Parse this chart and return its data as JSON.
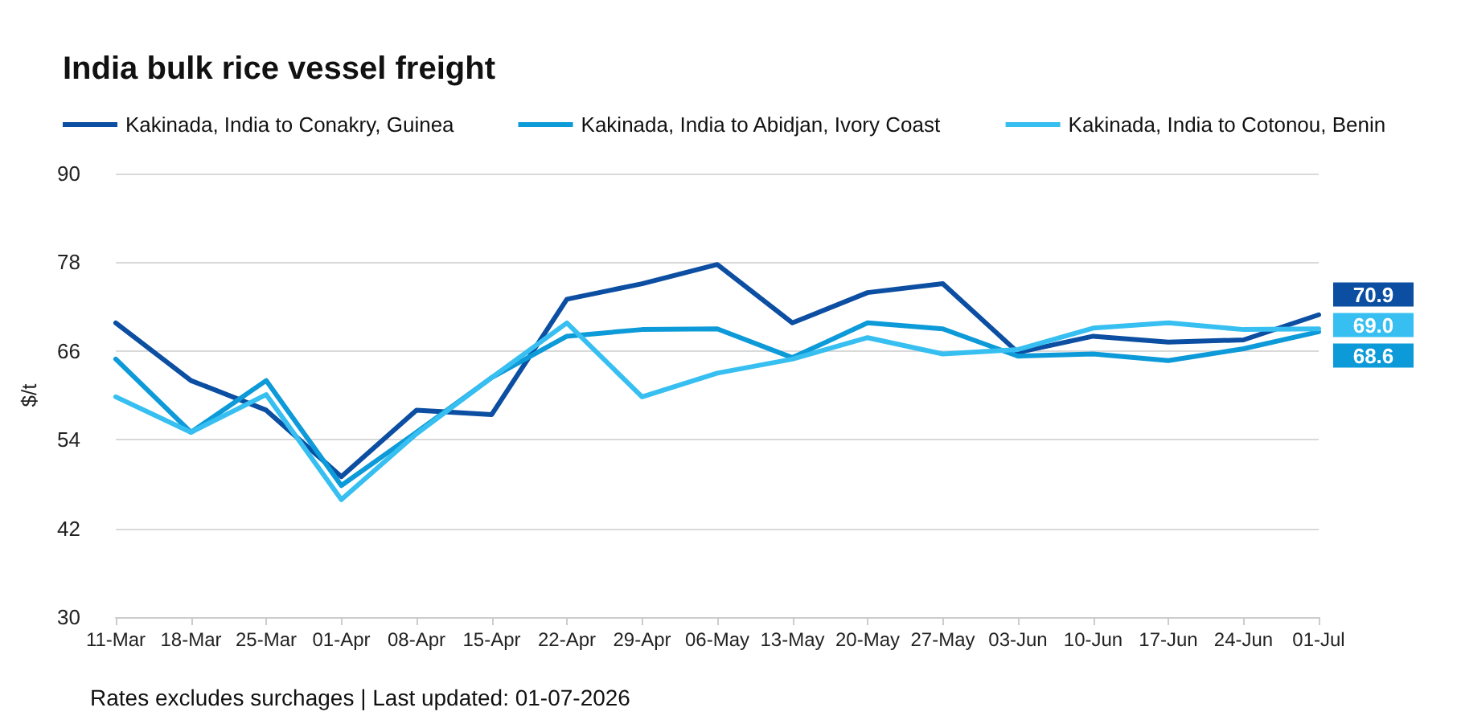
{
  "chart_data": {
    "type": "line",
    "title": "India bulk rice vessel freight",
    "ylabel": "$/t",
    "categories": [
      "11-Mar",
      "18-Mar",
      "25-Mar",
      "01-Apr",
      "08-Apr",
      "15-Apr",
      "22-Apr",
      "29-Apr",
      "06-May",
      "13-May",
      "20-May",
      "27-May",
      "03-Jun",
      "10-Jun",
      "17-Jun",
      "24-Jun",
      "01-Jul"
    ],
    "series": [
      {
        "name": "Kakinada, India to Conakry, Guinea",
        "color": "#0b4ea2",
        "values": [
          69.8,
          62,
          58,
          49,
          58,
          57.4,
          73,
          75.1,
          77.7,
          69.8,
          73.9,
          75.1,
          65.8,
          68,
          67.2,
          67.5,
          70.9
        ],
        "value_labels": [
          null,
          null,
          null,
          null,
          null,
          null,
          null,
          null,
          null,
          null,
          null,
          null,
          null,
          null,
          null,
          null,
          "70.9"
        ]
      },
      {
        "name": "Kakinada, India to Abidjan, Ivory Coast",
        "color": "#0d9ad8",
        "values": [
          64.9,
          55,
          62,
          47.8,
          55,
          62.4,
          68,
          68.9,
          69,
          65.1,
          69.8,
          69,
          65.3,
          65.6,
          64.7,
          66.3,
          68.6
        ],
        "value_labels": [
          null,
          null,
          null,
          null,
          null,
          null,
          null,
          null,
          null,
          null,
          null,
          null,
          null,
          null,
          null,
          null,
          "68.6"
        ]
      },
      {
        "name": "Kakinada, India to Cotonou, Benin",
        "color": "#36bff0",
        "values": [
          59.8,
          55,
          60.1,
          45.9,
          54.8,
          62.4,
          69.8,
          59.8,
          63,
          64.9,
          67.8,
          65.6,
          66.2,
          69.1,
          69.8,
          68.9,
          69
        ],
        "value_labels": [
          null,
          null,
          null,
          null,
          null,
          null,
          null,
          null,
          null,
          null,
          null,
          null,
          null,
          null,
          null,
          null,
          "69.0"
        ]
      }
    ],
    "ylim": [
      30,
      90
    ],
    "yticks": [
      30,
      42,
      54,
      66,
      78,
      90
    ],
    "grid": "y",
    "legend": "top left",
    "line_style": "solid",
    "annotations": [
      "Rates excludes surchages | Last updated: 01-07-2026"
    ]
  }
}
